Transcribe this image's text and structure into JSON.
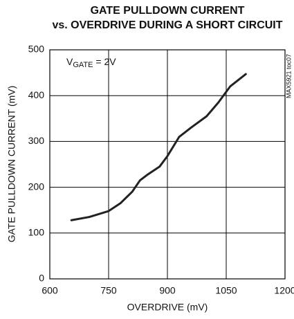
{
  "chart_data": {
    "type": "line",
    "title": "GATE PULLDOWN CURRENT",
    "subtitle": "vs. OVERDRIVE DURING A SHORT CIRCUIT",
    "xlabel": "OVERDRIVE (mV)",
    "ylabel": "GATE PULLDOWN CURRENT (mV)",
    "annotation": {
      "main": "V",
      "sub": "GATE",
      "rest": " = 2V"
    },
    "side_label": "MAX5921 toc07",
    "x": [
      655,
      700,
      750,
      780,
      810,
      830,
      850,
      880,
      900,
      930,
      960,
      1000,
      1030,
      1060,
      1100
    ],
    "values": [
      128,
      135,
      148,
      165,
      190,
      215,
      228,
      245,
      268,
      310,
      330,
      355,
      385,
      420,
      447
    ],
    "color": "#222222",
    "xlim": [
      600,
      1200
    ],
    "xticks": [
      600,
      750,
      900,
      1050,
      1200
    ],
    "ylim": [
      0,
      500
    ],
    "yticks": [
      0,
      100,
      200,
      300,
      400,
      500
    ],
    "grid": true
  }
}
